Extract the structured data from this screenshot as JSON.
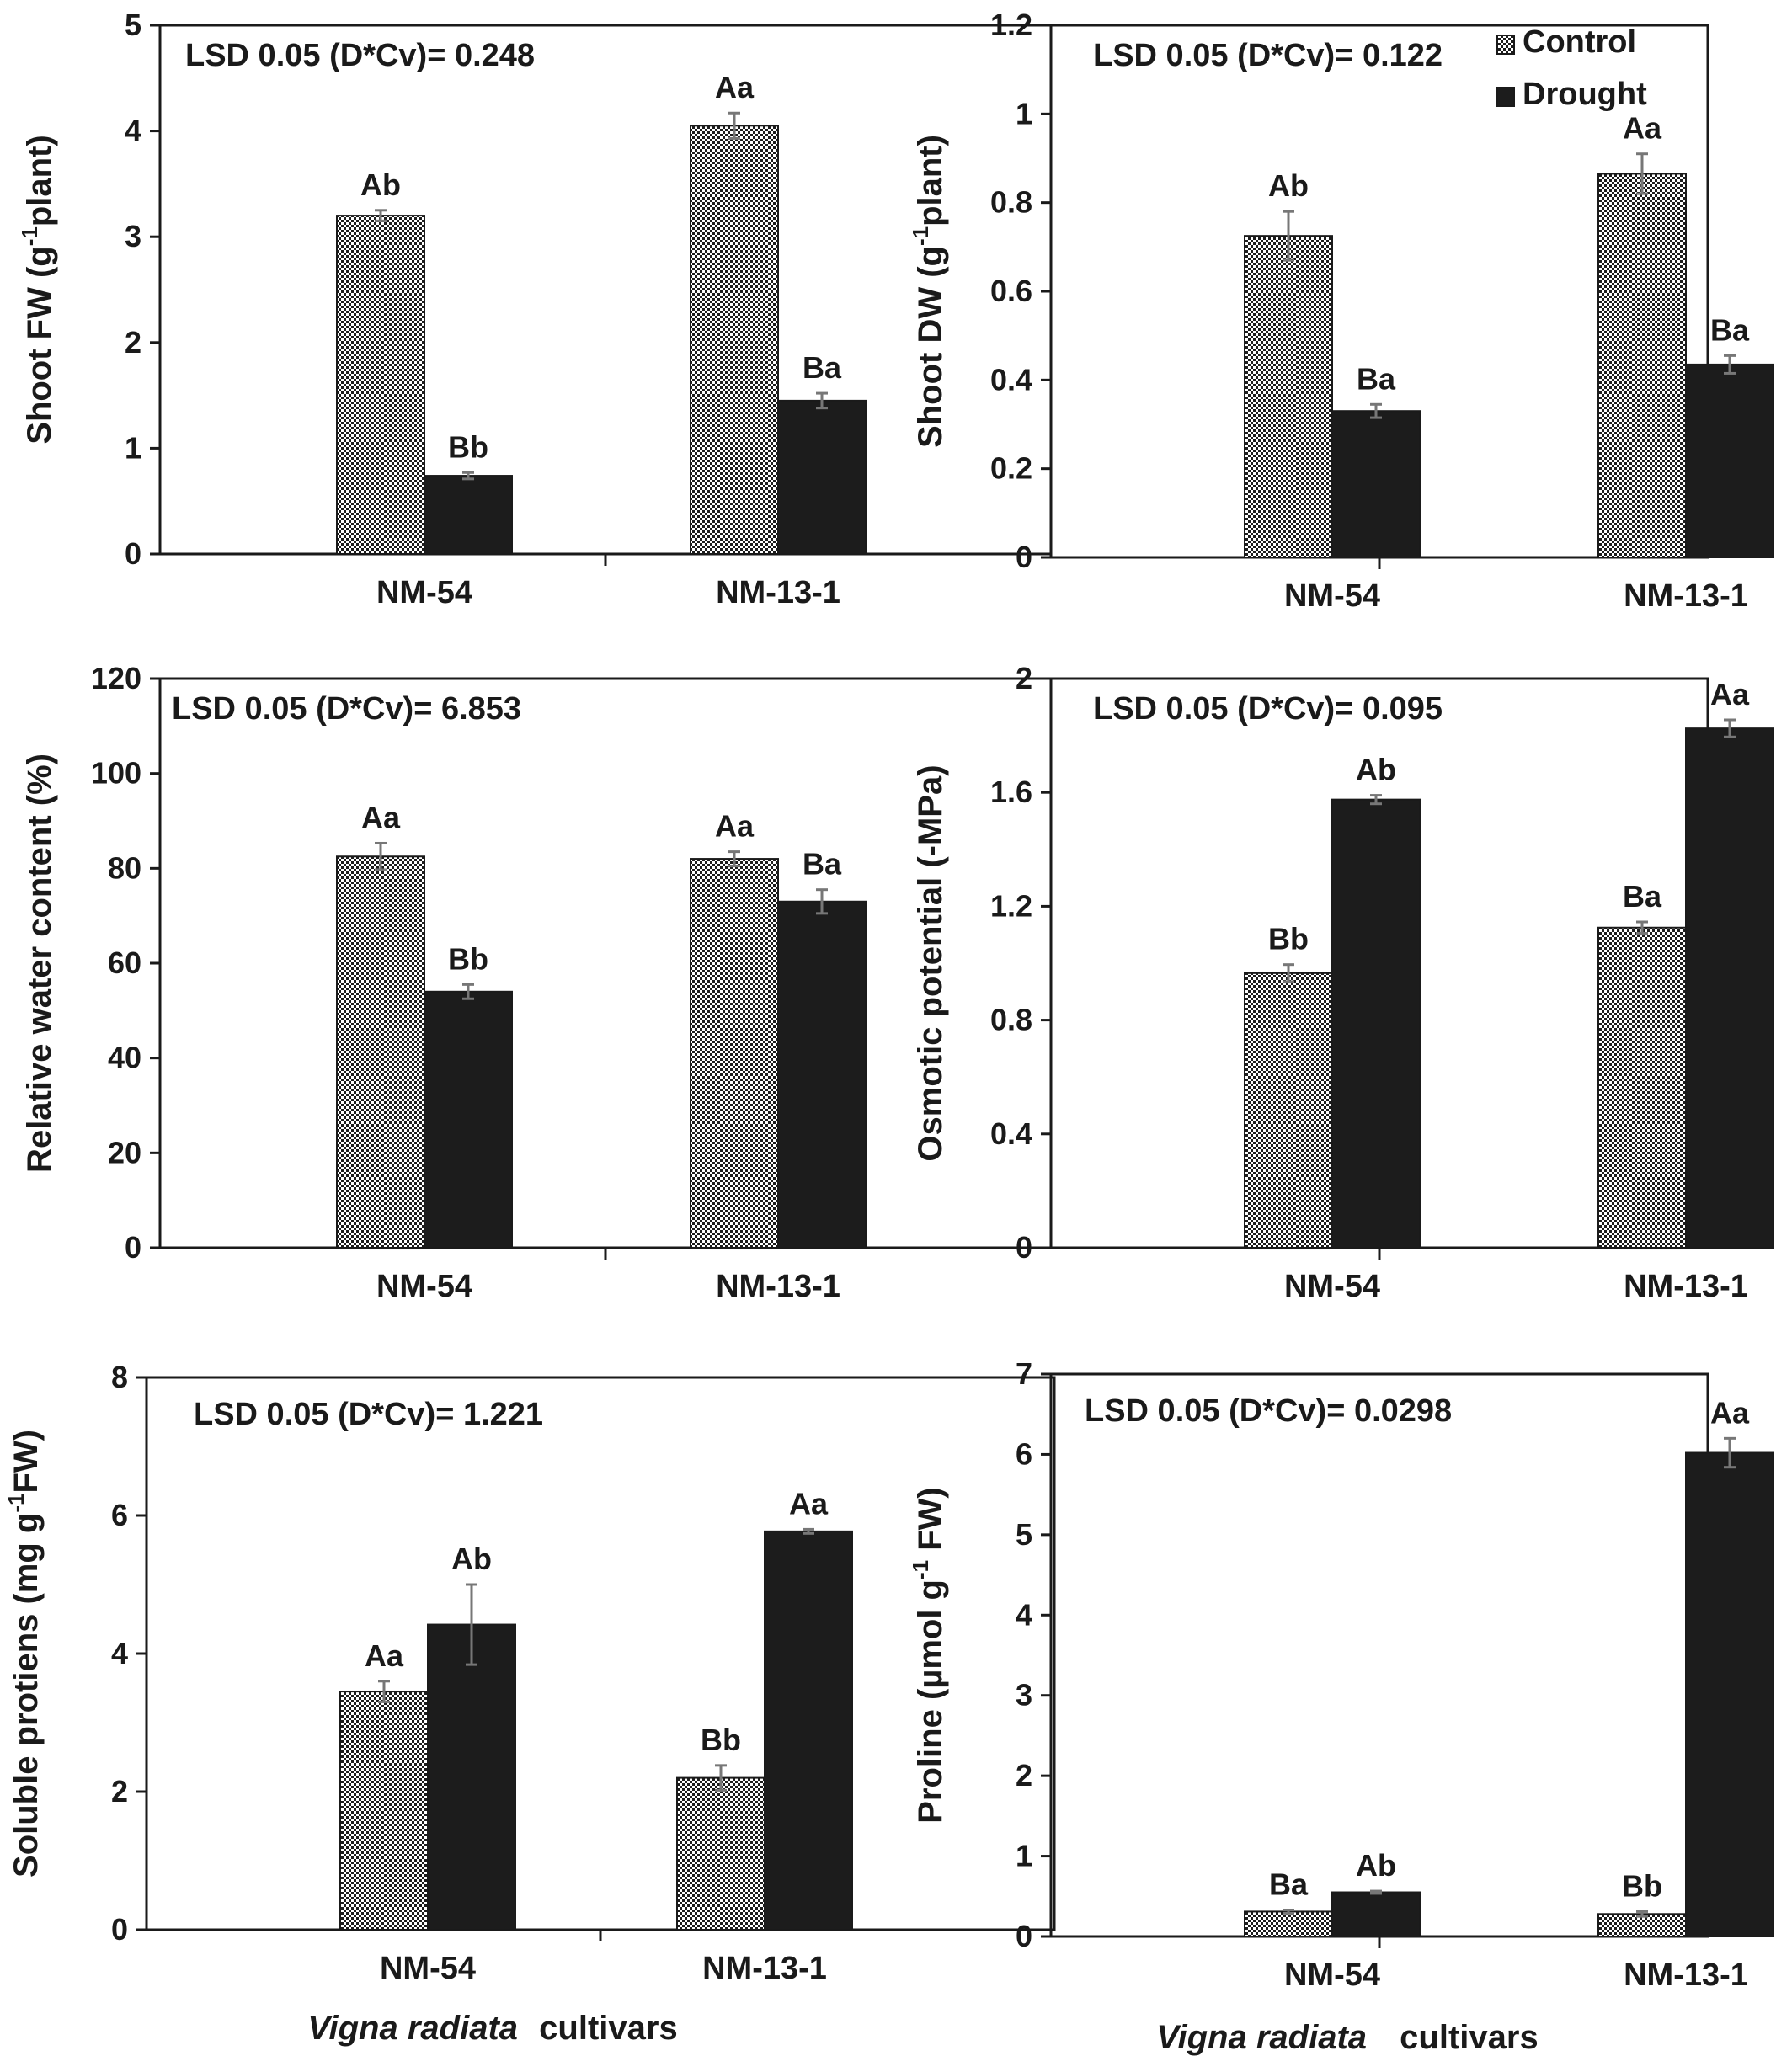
{
  "colors": {
    "control_fill": "#d9d9d9",
    "drought_fill": "#1c1c1c",
    "axis": "#1a1a1a",
    "error_bar": "#777777"
  },
  "legend": [
    {
      "name": "Control",
      "swatch": "dotted"
    },
    {
      "name": "Drought",
      "swatch": "solid"
    }
  ],
  "x_title": {
    "italic": "Vigna radiata",
    "plain": "cultivars"
  },
  "chart_data": [
    {
      "type": "bar",
      "ylabel_main": "Shoot FW (g",
      "ylabel_sup": "-1",
      "ylabel_rest": "plant)",
      "ylim": [
        0,
        5
      ],
      "yticks": [
        "0",
        "1",
        "2",
        "3",
        "4",
        "5"
      ],
      "annotation": "LSD 0.05 (D*Cv)= 0.248",
      "categories": [
        "NM-54",
        "NM-13-1"
      ],
      "series": [
        {
          "name": "Control",
          "values": [
            3.2,
            4.05
          ],
          "errors": [
            0.05,
            0.12
          ],
          "letters": [
            "Ab",
            "Aa"
          ]
        },
        {
          "name": "Drought",
          "values": [
            0.74,
            1.45
          ],
          "errors": [
            0.03,
            0.07
          ],
          "letters": [
            "Bb",
            "Ba"
          ]
        }
      ],
      "grid": false,
      "legend": false
    },
    {
      "type": "bar",
      "ylabel_main": "Shoot DW (g",
      "ylabel_sup": "-1",
      "ylabel_rest": "plant)",
      "ylim": [
        0,
        1.2
      ],
      "yticks": [
        "0",
        "0.2",
        "0.4",
        "0.6",
        "0.8",
        "1",
        "1.2"
      ],
      "annotation": "LSD 0.05 (D*Cv)= 0.122",
      "categories": [
        "NM-54",
        "NM-13-1"
      ],
      "series": [
        {
          "name": "Control",
          "values": [
            0.725,
            0.865
          ],
          "errors": [
            0.055,
            0.045
          ],
          "letters": [
            "Ab",
            "Aa"
          ]
        },
        {
          "name": "Drought",
          "values": [
            0.33,
            0.435
          ],
          "errors": [
            0.015,
            0.02
          ],
          "letters": [
            "Ba",
            "Ba"
          ]
        }
      ],
      "grid": false,
      "legend": "top-right"
    },
    {
      "type": "bar",
      "ylabel_main": "Relative water content (%)",
      "ylabel_sup": "",
      "ylabel_rest": "",
      "ylim": [
        0,
        120
      ],
      "yticks": [
        "0",
        "20",
        "40",
        "60",
        "80",
        "100",
        "120"
      ],
      "annotation": "LSD 0.05 (D*Cv)= 6.853",
      "categories": [
        "NM-54",
        "NM-13-1"
      ],
      "series": [
        {
          "name": "Control",
          "values": [
            82.5,
            82
          ],
          "errors": [
            2.8,
            1.5
          ],
          "letters": [
            "Aa",
            "Aa"
          ]
        },
        {
          "name": "Drought",
          "values": [
            54,
            73
          ],
          "errors": [
            1.5,
            2.5
          ],
          "letters": [
            "Bb",
            "Ba"
          ]
        }
      ],
      "grid": false,
      "legend": false
    },
    {
      "type": "bar",
      "ylabel_main": "Osmotic potential (-MPa)",
      "ylabel_sup": "",
      "ylabel_rest": "",
      "ylim": [
        0,
        2
      ],
      "yticks": [
        "0",
        "0.4",
        "0.8",
        "1.2",
        "1.6",
        "2"
      ],
      "annotation": "LSD 0.05 (D*Cv)= 0.095",
      "categories": [
        "NM-54",
        "NM-13-1"
      ],
      "series": [
        {
          "name": "Control",
          "values": [
            0.965,
            1.125
          ],
          "errors": [
            0.03,
            0.02
          ],
          "letters": [
            "Bb",
            "Ba"
          ]
        },
        {
          "name": "Drought",
          "values": [
            1.575,
            1.825
          ],
          "errors": [
            0.015,
            0.03
          ],
          "letters": [
            "Ab",
            "Aa"
          ]
        }
      ],
      "grid": false,
      "legend": false
    },
    {
      "type": "bar",
      "ylabel_main": "Soluble protiens (mg g",
      "ylabel_sup": "-1",
      "ylabel_rest": "FW)",
      "ylim": [
        0,
        8
      ],
      "yticks": [
        "0",
        "2",
        "4",
        "6",
        "8"
      ],
      "annotation": "LSD 0.05 (D*Cv)= 1.221",
      "categories": [
        "NM-54",
        "NM-13-1"
      ],
      "series": [
        {
          "name": "Control",
          "values": [
            3.45,
            2.2
          ],
          "errors": [
            0.15,
            0.18
          ],
          "letters": [
            "Aa",
            "Bb"
          ]
        },
        {
          "name": "Drought",
          "values": [
            4.42,
            5.77
          ],
          "errors": [
            0.58,
            0.03
          ],
          "letters": [
            "Ab",
            "Aa"
          ]
        }
      ],
      "grid": false,
      "legend": false
    },
    {
      "type": "bar",
      "ylabel_main": "Proline (µmol g",
      "ylabel_sup": "-1",
      "ylabel_rest": " FW)",
      "ylim": [
        0,
        7
      ],
      "yticks": [
        "0",
        "1",
        "2",
        "3",
        "4",
        "5",
        "6",
        "7"
      ],
      "annotation": "LSD 0.05 (D*Cv)= 0.0298",
      "categories": [
        "NM-54",
        "NM-13-1"
      ],
      "series": [
        {
          "name": "Control",
          "values": [
            0.31,
            0.28
          ],
          "errors": [
            0.02,
            0.03
          ],
          "letters": [
            "Ba",
            "Bb"
          ]
        },
        {
          "name": "Drought",
          "values": [
            0.55,
            6.02
          ],
          "errors": [
            0.015,
            0.18
          ],
          "letters": [
            "Ab",
            "Aa"
          ]
        }
      ],
      "grid": false,
      "legend": false
    }
  ]
}
